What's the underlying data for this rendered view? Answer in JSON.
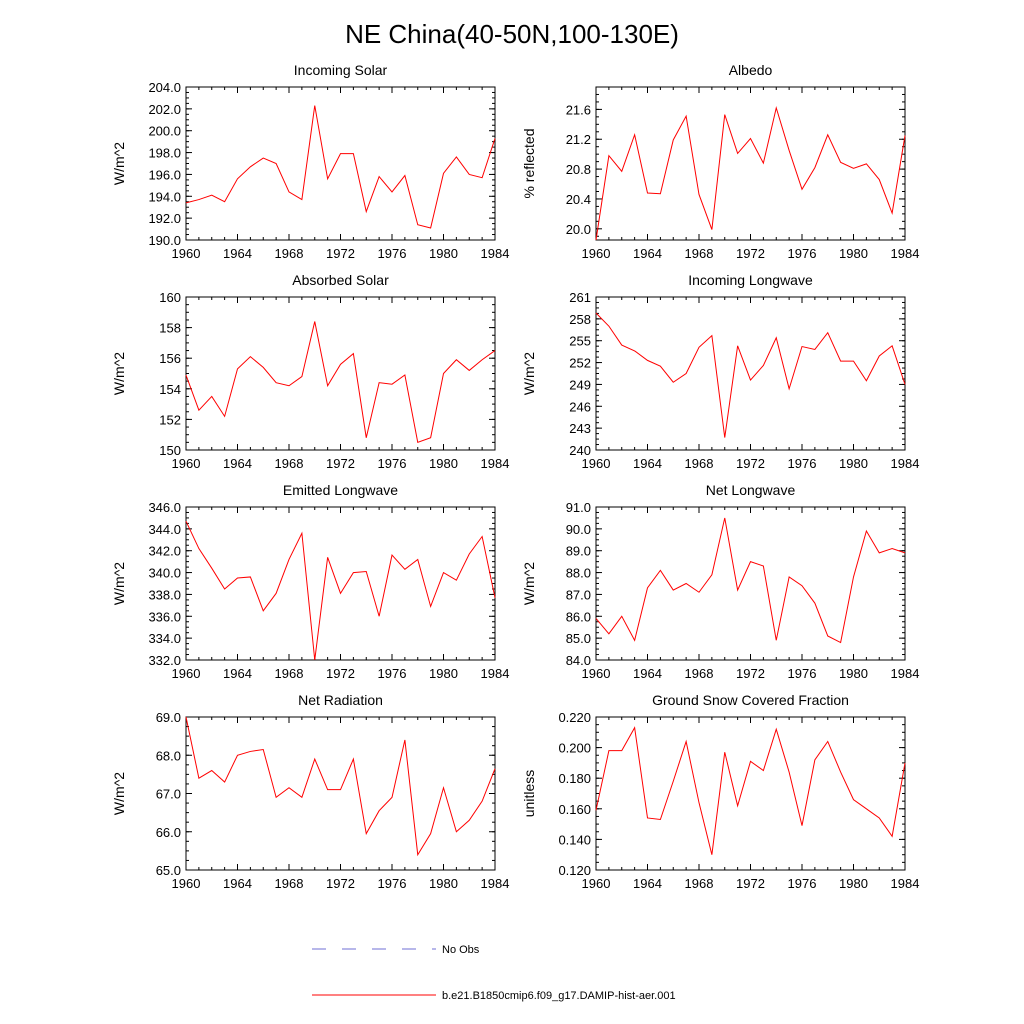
{
  "figure": {
    "title": "NE China(40-50N,100-130E)"
  },
  "legend": {
    "items": [
      {
        "label": "No Obs",
        "color": "#6f6fd6",
        "dash": true
      },
      {
        "label": "b.e21.B1850cmip6.f09_g17.DAMIP-hist-aer.001",
        "color": "#ff0000",
        "dash": false
      }
    ]
  },
  "chart_data": [
    {
      "type": "line",
      "title": "Incoming Solar",
      "ylabel": "W/m^2",
      "xlim": [
        1960,
        1984
      ],
      "ylim": [
        190,
        204
      ],
      "yticks": [
        190,
        192,
        194,
        196,
        198,
        200,
        202,
        204
      ],
      "ytick_labels": [
        "190.0",
        "192.0",
        "194.0",
        "196.0",
        "198.0",
        "200.0",
        "202.0",
        "204.0"
      ],
      "xticks": [
        1960,
        1964,
        1968,
        1972,
        1976,
        1980,
        1984
      ],
      "xtick_labels": [
        "1960",
        "1964",
        "1968",
        "1972",
        "1976",
        "1980",
        "1984"
      ],
      "series": [
        {
          "color": "#ff0000",
          "x": [
            1960,
            1961,
            1962,
            1963,
            1964,
            1965,
            1966,
            1967,
            1968,
            1969,
            1970,
            1971,
            1972,
            1973,
            1974,
            1975,
            1976,
            1977,
            1978,
            1979,
            1980,
            1981,
            1982,
            1983,
            1984
          ],
          "y": [
            193.4,
            193.7,
            194.1,
            193.5,
            195.6,
            196.7,
            197.5,
            197.0,
            194.4,
            193.7,
            202.3,
            195.6,
            197.9,
            197.9,
            192.6,
            195.8,
            194.4,
            195.9,
            191.4,
            191.1,
            196.1,
            197.6,
            196.0,
            195.7,
            199.3
          ]
        }
      ]
    },
    {
      "type": "line",
      "title": "Albedo",
      "ylabel": "% reflected",
      "xlim": [
        1960,
        1984
      ],
      "ylim": [
        19.85,
        21.9
      ],
      "yticks": [
        20.0,
        20.4,
        20.8,
        21.2,
        21.6
      ],
      "ytick_labels": [
        "20.0",
        "20.4",
        "20.8",
        "21.2",
        "21.6"
      ],
      "xticks": [
        1960,
        1964,
        1968,
        1972,
        1976,
        1980,
        1984
      ],
      "xtick_labels": [
        "1960",
        "1964",
        "1968",
        "1972",
        "1976",
        "1980",
        "1984"
      ],
      "series": [
        {
          "color": "#ff0000",
          "x": [
            1960,
            1961,
            1962,
            1963,
            1964,
            1965,
            1966,
            1967,
            1968,
            1969,
            1970,
            1971,
            1972,
            1973,
            1974,
            1975,
            1976,
            1977,
            1978,
            1979,
            1980,
            1981,
            1982,
            1983,
            1984
          ],
          "y": [
            19.85,
            20.98,
            20.77,
            21.26,
            20.48,
            20.47,
            21.19,
            21.51,
            20.46,
            19.99,
            21.53,
            21.01,
            21.21,
            20.88,
            21.62,
            21.05,
            20.53,
            20.82,
            21.26,
            20.89,
            20.81,
            20.87,
            20.66,
            20.21,
            21.25
          ]
        }
      ]
    },
    {
      "type": "line",
      "title": "Absorbed Solar",
      "ylabel": "W/m^2",
      "xlim": [
        1960,
        1984
      ],
      "ylim": [
        150,
        160
      ],
      "yticks": [
        150,
        152,
        154,
        156,
        158,
        160
      ],
      "ytick_labels": [
        "150",
        "152",
        "154",
        "156",
        "158",
        "160"
      ],
      "xticks": [
        1960,
        1964,
        1968,
        1972,
        1976,
        1980,
        1984
      ],
      "xtick_labels": [
        "1960",
        "1964",
        "1968",
        "1972",
        "1976",
        "1980",
        "1984"
      ],
      "series": [
        {
          "color": "#ff0000",
          "x": [
            1960,
            1961,
            1962,
            1963,
            1964,
            1965,
            1966,
            1967,
            1968,
            1969,
            1970,
            1971,
            1972,
            1973,
            1974,
            1975,
            1976,
            1977,
            1978,
            1979,
            1980,
            1981,
            1982,
            1983,
            1984
          ],
          "y": [
            154.9,
            152.6,
            153.5,
            152.2,
            155.3,
            156.1,
            155.4,
            154.4,
            154.2,
            154.8,
            158.4,
            154.2,
            155.6,
            156.3,
            150.8,
            154.4,
            154.3,
            154.9,
            150.5,
            150.8,
            155.0,
            155.9,
            155.2,
            155.9,
            156.5
          ]
        }
      ]
    },
    {
      "type": "line",
      "title": "Incoming Longwave",
      "ylabel": "W/m^2",
      "xlim": [
        1960,
        1984
      ],
      "ylim": [
        240,
        261
      ],
      "yticks": [
        240,
        243,
        246,
        249,
        252,
        255,
        258,
        261
      ],
      "ytick_labels": [
        "240",
        "243",
        "246",
        "249",
        "252",
        "255",
        "258",
        "261"
      ],
      "xticks": [
        1960,
        1964,
        1968,
        1972,
        1976,
        1980,
        1984
      ],
      "xtick_labels": [
        "1960",
        "1964",
        "1968",
        "1972",
        "1976",
        "1980",
        "1984"
      ],
      "series": [
        {
          "color": "#ff0000",
          "x": [
            1960,
            1961,
            1962,
            1963,
            1964,
            1965,
            1966,
            1967,
            1968,
            1969,
            1970,
            1971,
            1972,
            1973,
            1974,
            1975,
            1976,
            1977,
            1978,
            1979,
            1980,
            1981,
            1982,
            1983,
            1984
          ],
          "y": [
            258.8,
            257.0,
            254.4,
            253.6,
            252.3,
            251.5,
            249.3,
            250.5,
            254.1,
            255.7,
            241.7,
            254.3,
            249.6,
            251.6,
            255.4,
            248.4,
            254.2,
            253.8,
            256.1,
            252.2,
            252.2,
            249.5,
            252.9,
            254.3,
            249.0
          ]
        }
      ]
    },
    {
      "type": "line",
      "title": "Emitted Longwave",
      "ylabel": "W/m^2",
      "xlim": [
        1960,
        1984
      ],
      "ylim": [
        332,
        346
      ],
      "yticks": [
        332,
        334,
        336,
        338,
        340,
        342,
        344,
        346
      ],
      "ytick_labels": [
        "332.0",
        "334.0",
        "336.0",
        "338.0",
        "340.0",
        "342.0",
        "344.0",
        "346.0"
      ],
      "xticks": [
        1960,
        1964,
        1968,
        1972,
        1976,
        1980,
        1984
      ],
      "xtick_labels": [
        "1960",
        "1964",
        "1968",
        "1972",
        "1976",
        "1980",
        "1984"
      ],
      "series": [
        {
          "color": "#ff0000",
          "x": [
            1960,
            1961,
            1962,
            1963,
            1964,
            1965,
            1966,
            1967,
            1968,
            1969,
            1970,
            1971,
            1972,
            1973,
            1974,
            1975,
            1976,
            1977,
            1978,
            1979,
            1980,
            1981,
            1982,
            1983,
            1984
          ],
          "y": [
            344.7,
            342.2,
            340.4,
            338.5,
            339.5,
            339.6,
            336.5,
            338.1,
            341.2,
            343.6,
            332.0,
            341.4,
            338.1,
            340.0,
            340.1,
            336.0,
            341.6,
            340.3,
            341.2,
            336.9,
            340.0,
            339.3,
            341.7,
            343.3,
            337.7
          ]
        }
      ]
    },
    {
      "type": "line",
      "title": "Net Longwave",
      "ylabel": "W/m^2",
      "xlim": [
        1960,
        1984
      ],
      "ylim": [
        84,
        91
      ],
      "yticks": [
        84,
        85,
        86,
        87,
        88,
        89,
        90,
        91
      ],
      "ytick_labels": [
        "84.0",
        "85.0",
        "86.0",
        "87.0",
        "88.0",
        "89.0",
        "90.0",
        "91.0"
      ],
      "xticks": [
        1960,
        1964,
        1968,
        1972,
        1976,
        1980,
        1984
      ],
      "xtick_labels": [
        "1960",
        "1964",
        "1968",
        "1972",
        "1976",
        "1980",
        "1984"
      ],
      "series": [
        {
          "color": "#ff0000",
          "x": [
            1960,
            1961,
            1962,
            1963,
            1964,
            1965,
            1966,
            1967,
            1968,
            1969,
            1970,
            1971,
            1972,
            1973,
            1974,
            1975,
            1976,
            1977,
            1978,
            1979,
            1980,
            1981,
            1982,
            1983,
            1984
          ],
          "y": [
            85.9,
            85.2,
            86.0,
            84.9,
            87.3,
            88.1,
            87.2,
            87.5,
            87.1,
            87.9,
            90.5,
            87.2,
            88.5,
            88.3,
            84.9,
            87.8,
            87.4,
            86.6,
            85.1,
            84.8,
            87.8,
            89.9,
            88.9,
            89.1,
            88.9
          ]
        }
      ]
    },
    {
      "type": "line",
      "title": "Net Radiation",
      "ylabel": "W/m^2",
      "xlim": [
        1960,
        1984
      ],
      "ylim": [
        65,
        69
      ],
      "yticks": [
        65,
        66,
        67,
        68,
        69
      ],
      "ytick_labels": [
        "65.0",
        "66.0",
        "67.0",
        "68.0",
        "69.0"
      ],
      "xticks": [
        1960,
        1964,
        1968,
        1972,
        1976,
        1980,
        1984
      ],
      "xtick_labels": [
        "1960",
        "1964",
        "1968",
        "1972",
        "1976",
        "1980",
        "1984"
      ],
      "series": [
        {
          "color": "#ff0000",
          "x": [
            1960,
            1961,
            1962,
            1963,
            1964,
            1965,
            1966,
            1967,
            1968,
            1969,
            1970,
            1971,
            1972,
            1973,
            1974,
            1975,
            1976,
            1977,
            1978,
            1979,
            1980,
            1981,
            1982,
            1983,
            1984
          ],
          "y": [
            69.0,
            67.4,
            67.6,
            67.3,
            68.0,
            68.1,
            68.15,
            66.9,
            67.15,
            66.9,
            67.9,
            67.1,
            67.1,
            67.9,
            65.95,
            66.55,
            66.9,
            68.4,
            65.4,
            65.95,
            67.15,
            66.0,
            66.3,
            66.8,
            67.65
          ]
        }
      ]
    },
    {
      "type": "line",
      "title": "Ground Snow Covered Fraction",
      "ylabel": "unitless",
      "xlim": [
        1960,
        1984
      ],
      "ylim": [
        0.12,
        0.22
      ],
      "yticks": [
        0.12,
        0.14,
        0.16,
        0.18,
        0.2,
        0.22
      ],
      "ytick_labels": [
        "0.120",
        "0.140",
        "0.160",
        "0.180",
        "0.200",
        "0.220"
      ],
      "xticks": [
        1960,
        1964,
        1968,
        1972,
        1976,
        1980,
        1984
      ],
      "xtick_labels": [
        "1960",
        "1964",
        "1968",
        "1972",
        "1976",
        "1980",
        "1984"
      ],
      "series": [
        {
          "color": "#ff0000",
          "x": [
            1960,
            1961,
            1962,
            1963,
            1964,
            1965,
            1966,
            1967,
            1968,
            1969,
            1970,
            1971,
            1972,
            1973,
            1974,
            1975,
            1976,
            1977,
            1978,
            1979,
            1980,
            1981,
            1982,
            1983,
            1984
          ],
          "y": [
            0.159,
            0.198,
            0.198,
            0.213,
            0.154,
            0.153,
            0.178,
            0.204,
            0.164,
            0.13,
            0.197,
            0.162,
            0.191,
            0.185,
            0.212,
            0.184,
            0.149,
            0.192,
            0.204,
            0.184,
            0.166,
            0.16,
            0.154,
            0.142,
            0.19
          ]
        }
      ]
    }
  ]
}
